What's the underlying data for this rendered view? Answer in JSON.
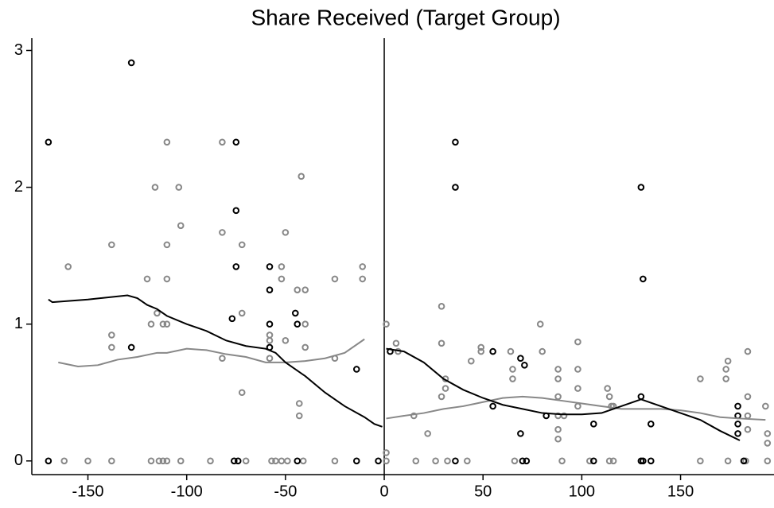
{
  "chart_data": {
    "type": "scatter",
    "title": "Share Received (Target Group)",
    "xlim": [
      -178.4,
      197.3
    ],
    "ylim": [
      -0.1,
      3.09
    ],
    "xticks": [
      -150,
      -100,
      -50,
      0,
      50,
      100,
      150
    ],
    "yticks": [
      0,
      1,
      2,
      3
    ],
    "vline": 0,
    "series": [
      {
        "type": "scatter",
        "color": "#888888",
        "x": [
          -160,
          -162,
          -138,
          -138,
          -138,
          -138,
          -150,
          -120,
          -118,
          -116,
          -115,
          -112,
          -110,
          -110,
          -110,
          -110,
          -118,
          -114,
          -110,
          -112,
          -104,
          -103,
          -103,
          -88,
          -82,
          -82,
          -82,
          -72,
          -72,
          -72,
          -70,
          -58,
          -58,
          -58,
          -57,
          -55,
          -52,
          -52,
          -50,
          -50,
          -49,
          -52,
          -44,
          -42,
          -43,
          -43,
          -40,
          -40,
          -40,
          -41,
          -25,
          -25,
          -25,
          -11,
          -11,
          1,
          1,
          1,
          6,
          7,
          15,
          16,
          22,
          29,
          29,
          29,
          31,
          31,
          26,
          32,
          44,
          49,
          49,
          42,
          64,
          65,
          65,
          66,
          79,
          80,
          88,
          88,
          88,
          88,
          91,
          88,
          88,
          90,
          98,
          98,
          98,
          98,
          104,
          113,
          114,
          115,
          116,
          114,
          116,
          160,
          160,
          173,
          174,
          173,
          174,
          184,
          184,
          184,
          184,
          183,
          193,
          194,
          194,
          194
        ],
        "values": [
          1.42,
          0,
          1.58,
          0.92,
          0.83,
          0,
          0,
          1.33,
          1.0,
          2.0,
          1.08,
          1.0,
          2.33,
          1.58,
          1.33,
          1.0,
          0,
          0,
          0,
          0,
          2.0,
          1.72,
          0,
          0,
          2.33,
          1.67,
          0.75,
          1.58,
          1.08,
          0.5,
          0,
          0.92,
          0.88,
          0.75,
          0,
          0,
          1.42,
          1.33,
          1.67,
          0.88,
          0,
          0,
          1.25,
          2.08,
          0.42,
          0.33,
          1.25,
          1.0,
          0.83,
          0,
          1.33,
          0.75,
          0,
          1.42,
          1.33,
          1.0,
          0.06,
          0,
          0.86,
          0.8,
          0.33,
          0,
          0.2,
          1.13,
          0.86,
          0.47,
          0.6,
          0.53,
          0,
          0,
          0.73,
          0.83,
          0.8,
          0,
          0.8,
          0.67,
          0.6,
          0,
          1.0,
          0.8,
          0.67,
          0.6,
          0.47,
          0.33,
          0.33,
          0.23,
          0.16,
          0,
          0.87,
          0.67,
          0.53,
          0.4,
          0,
          0.53,
          0.47,
          0.4,
          0.4,
          0,
          0,
          0.6,
          0,
          0.67,
          0.73,
          0.6,
          0,
          0.8,
          0.47,
          0.33,
          0.23,
          0,
          0.4,
          0.2,
          0.13,
          0
        ]
      },
      {
        "type": "scatter",
        "color": "#000000",
        "x": [
          -170,
          -170,
          -128,
          -128,
          -75,
          -75,
          -75,
          -77,
          -76,
          -74,
          -58,
          -58,
          -58,
          -58,
          -45,
          -44,
          -44,
          -14,
          -14,
          -3,
          3,
          36,
          36,
          36,
          55,
          55,
          69,
          69,
          71,
          70,
          72,
          82,
          106,
          106,
          130,
          131,
          130,
          130,
          131,
          135,
          135,
          179,
          179,
          179,
          179,
          182
        ],
        "values": [
          2.33,
          0,
          2.91,
          0.83,
          2.33,
          1.83,
          1.42,
          1.04,
          0,
          0,
          1.42,
          1.25,
          1.0,
          0.83,
          1.08,
          1.0,
          0,
          0.67,
          0,
          0,
          0.8,
          2.33,
          2.0,
          0,
          0.8,
          0.4,
          0.75,
          0.2,
          0.7,
          0,
          0,
          0.33,
          0.27,
          0,
          2.0,
          1.33,
          0.47,
          0,
          0,
          0.27,
          0,
          0.4,
          0.33,
          0.27,
          0.2,
          0
        ]
      },
      {
        "type": "line",
        "color": "#888888",
        "x": [
          -165,
          -155,
          -145,
          -135,
          -125,
          -115,
          -110,
          -100,
          -90,
          -80,
          -70,
          -60,
          -50,
          -40,
          -30,
          -20,
          -10,
          0,
          1,
          10,
          20,
          30,
          40,
          50,
          60,
          70,
          80,
          90,
          100,
          110,
          120,
          130,
          140,
          150,
          160,
          170,
          180,
          193
        ],
        "values": [
          0.72,
          0.69,
          0.7,
          0.74,
          0.76,
          0.79,
          0.79,
          0.82,
          0.81,
          0.78,
          0.76,
          0.72,
          0.72,
          0.73,
          0.75,
          0.79,
          0.89,
          null,
          0.31,
          0.33,
          0.35,
          0.38,
          0.4,
          0.43,
          0.46,
          0.47,
          0.46,
          0.44,
          0.42,
          0.4,
          0.38,
          0.38,
          0.38,
          0.37,
          0.35,
          0.32,
          0.31,
          0.3
        ]
      },
      {
        "type": "line",
        "color": "#000000",
        "x": [
          -170,
          -168,
          -150,
          -130,
          -125,
          -120,
          -115,
          -110,
          -100,
          -90,
          -80,
          -70,
          -60,
          -55,
          -50,
          -40,
          -30,
          -20,
          -10,
          -5,
          -1,
          0,
          1,
          10,
          20,
          30,
          40,
          50,
          60,
          70,
          80,
          90,
          100,
          110,
          120,
          130,
          140,
          150,
          160,
          170,
          180
        ],
        "values": [
          1.18,
          1.16,
          1.18,
          1.21,
          1.19,
          1.14,
          1.11,
          1.06,
          1.0,
          0.95,
          0.88,
          0.84,
          0.82,
          0.79,
          0.72,
          0.62,
          0.5,
          0.4,
          0.32,
          0.27,
          0.25,
          null,
          0.82,
          0.8,
          0.72,
          0.6,
          0.52,
          0.46,
          0.41,
          0.38,
          0.35,
          0.34,
          0.34,
          0.35,
          0.4,
          0.45,
          0.4,
          0.35,
          0.3,
          0.22,
          0.15
        ]
      }
    ]
  }
}
